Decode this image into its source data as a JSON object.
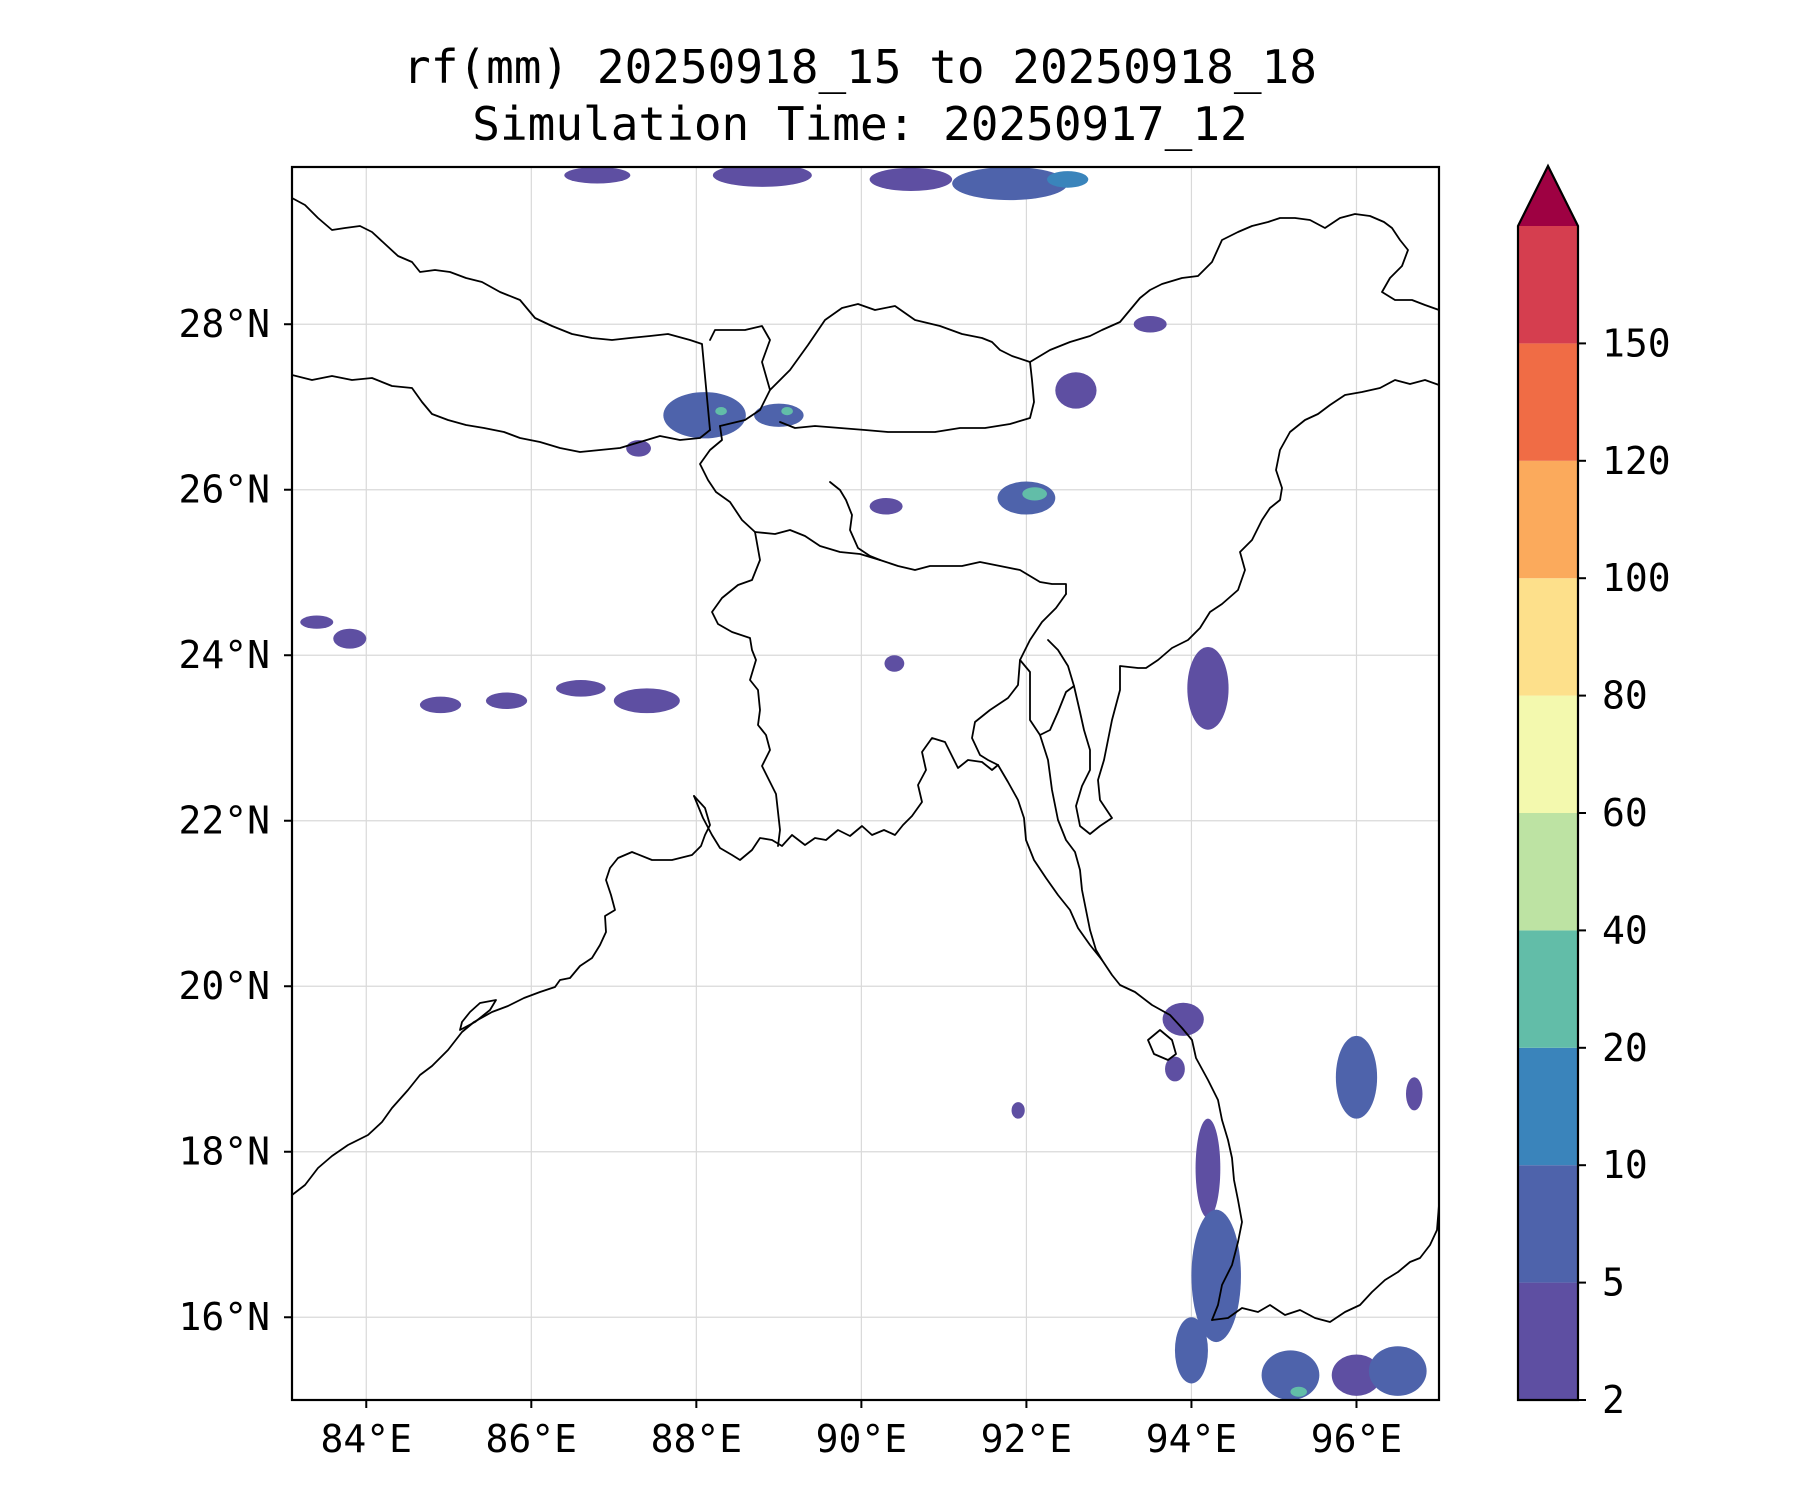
{
  "title": {
    "line1": "rf(mm) 20250918_15 to 20250918_18",
    "line2": "Simulation Time: 20250917_12"
  },
  "map": {
    "lon_range": [
      83.1,
      97.0
    ],
    "lat_range": [
      15.0,
      29.9
    ],
    "lon_ticks": [
      {
        "value": 84,
        "label": "84°E"
      },
      {
        "value": 86,
        "label": "86°E"
      },
      {
        "value": 88,
        "label": "88°E"
      },
      {
        "value": 90,
        "label": "90°E"
      },
      {
        "value": 92,
        "label": "92°E"
      },
      {
        "value": 94,
        "label": "94°E"
      },
      {
        "value": 96,
        "label": "96°E"
      }
    ],
    "lat_ticks": [
      {
        "value": 16,
        "label": "16°N"
      },
      {
        "value": 18,
        "label": "18°N"
      },
      {
        "value": 20,
        "label": "20°N"
      },
      {
        "value": 22,
        "label": "22°N"
      },
      {
        "value": 24,
        "label": "24°N"
      },
      {
        "value": 26,
        "label": "26°N"
      },
      {
        "value": 28,
        "label": "28°N"
      }
    ],
    "gridlines": true
  },
  "colorbar": {
    "levels": [
      "2",
      "5",
      "10",
      "20",
      "40",
      "60",
      "80",
      "100",
      "120",
      "150"
    ],
    "colors": [
      "#5e4fa2",
      "#4e63ab",
      "#3a84bb",
      "#62bda8",
      "#bde3a3",
      "#f3f9ae",
      "#fde08b",
      "#fbaa5c",
      "#f06c45",
      "#d53e4f"
    ],
    "extend_color": "#9e0142"
  },
  "rain_cells": [
    {
      "lon": 86.8,
      "lat": 29.8,
      "rx": 0.4,
      "ry": 0.1,
      "level": 0
    },
    {
      "lon": 88.8,
      "lat": 29.8,
      "rx": 0.6,
      "ry": 0.14,
      "level": 0
    },
    {
      "lon": 90.6,
      "lat": 29.75,
      "rx": 0.5,
      "ry": 0.14,
      "level": 0
    },
    {
      "lon": 91.8,
      "lat": 29.7,
      "rx": 0.7,
      "ry": 0.2,
      "level": 1
    },
    {
      "lon": 92.5,
      "lat": 29.75,
      "rx": 0.25,
      "ry": 0.1,
      "level": 2
    },
    {
      "lon": 88.1,
      "lat": 26.9,
      "rx": 0.5,
      "ry": 0.28,
      "level": 1
    },
    {
      "lon": 89.0,
      "lat": 26.9,
      "rx": 0.3,
      "ry": 0.14,
      "level": 1
    },
    {
      "lon": 88.3,
      "lat": 26.95,
      "rx": 0.07,
      "ry": 0.05,
      "level": 3
    },
    {
      "lon": 89.1,
      "lat": 26.95,
      "rx": 0.07,
      "ry": 0.05,
      "level": 3
    },
    {
      "lon": 87.3,
      "lat": 26.5,
      "rx": 0.15,
      "ry": 0.1,
      "level": 0
    },
    {
      "lon": 92.0,
      "lat": 25.9,
      "rx": 0.35,
      "ry": 0.2,
      "level": 1
    },
    {
      "lon": 92.1,
      "lat": 25.95,
      "rx": 0.15,
      "ry": 0.08,
      "level": 3
    },
    {
      "lon": 92.6,
      "lat": 27.2,
      "rx": 0.25,
      "ry": 0.22,
      "level": 0
    },
    {
      "lon": 93.5,
      "lat": 28.0,
      "rx": 0.2,
      "ry": 0.1,
      "level": 0
    },
    {
      "lon": 90.3,
      "lat": 25.8,
      "rx": 0.2,
      "ry": 0.1,
      "level": 0
    },
    {
      "lon": 94.2,
      "lat": 23.6,
      "rx": 0.25,
      "ry": 0.5,
      "level": 0
    },
    {
      "lon": 84.9,
      "lat": 23.4,
      "rx": 0.25,
      "ry": 0.1,
      "level": 0
    },
    {
      "lon": 85.7,
      "lat": 23.45,
      "rx": 0.25,
      "ry": 0.1,
      "level": 0
    },
    {
      "lon": 86.6,
      "lat": 23.6,
      "rx": 0.3,
      "ry": 0.1,
      "level": 0
    },
    {
      "lon": 87.4,
      "lat": 23.45,
      "rx": 0.4,
      "ry": 0.15,
      "level": 0
    },
    {
      "lon": 83.4,
      "lat": 24.4,
      "rx": 0.2,
      "ry": 0.08,
      "level": 0
    },
    {
      "lon": 83.8,
      "lat": 24.2,
      "rx": 0.2,
      "ry": 0.12,
      "level": 0
    },
    {
      "lon": 90.4,
      "lat": 23.9,
      "rx": 0.12,
      "ry": 0.1,
      "level": 0
    },
    {
      "lon": 93.9,
      "lat": 19.6,
      "rx": 0.25,
      "ry": 0.2,
      "level": 0
    },
    {
      "lon": 93.8,
      "lat": 19.0,
      "rx": 0.12,
      "ry": 0.15,
      "level": 0
    },
    {
      "lon": 94.2,
      "lat": 17.8,
      "rx": 0.15,
      "ry": 0.6,
      "level": 0
    },
    {
      "lon": 94.3,
      "lat": 16.5,
      "rx": 0.3,
      "ry": 0.8,
      "level": 1
    },
    {
      "lon": 94.0,
      "lat": 15.6,
      "rx": 0.2,
      "ry": 0.4,
      "level": 1
    },
    {
      "lon": 95.2,
      "lat": 15.3,
      "rx": 0.35,
      "ry": 0.3,
      "level": 1
    },
    {
      "lon": 95.3,
      "lat": 15.1,
      "rx": 0.1,
      "ry": 0.06,
      "level": 3
    },
    {
      "lon": 96.0,
      "lat": 15.3,
      "rx": 0.3,
      "ry": 0.25,
      "level": 0
    },
    {
      "lon": 96.5,
      "lat": 15.35,
      "rx": 0.35,
      "ry": 0.3,
      "level": 1
    },
    {
      "lon": 96.0,
      "lat": 18.9,
      "rx": 0.25,
      "ry": 0.5,
      "level": 1
    },
    {
      "lon": 96.7,
      "lat": 18.7,
      "rx": 0.1,
      "ry": 0.2,
      "level": 0
    },
    {
      "lon": 91.9,
      "lat": 18.5,
      "rx": 0.08,
      "ry": 0.1,
      "level": 0
    }
  ]
}
